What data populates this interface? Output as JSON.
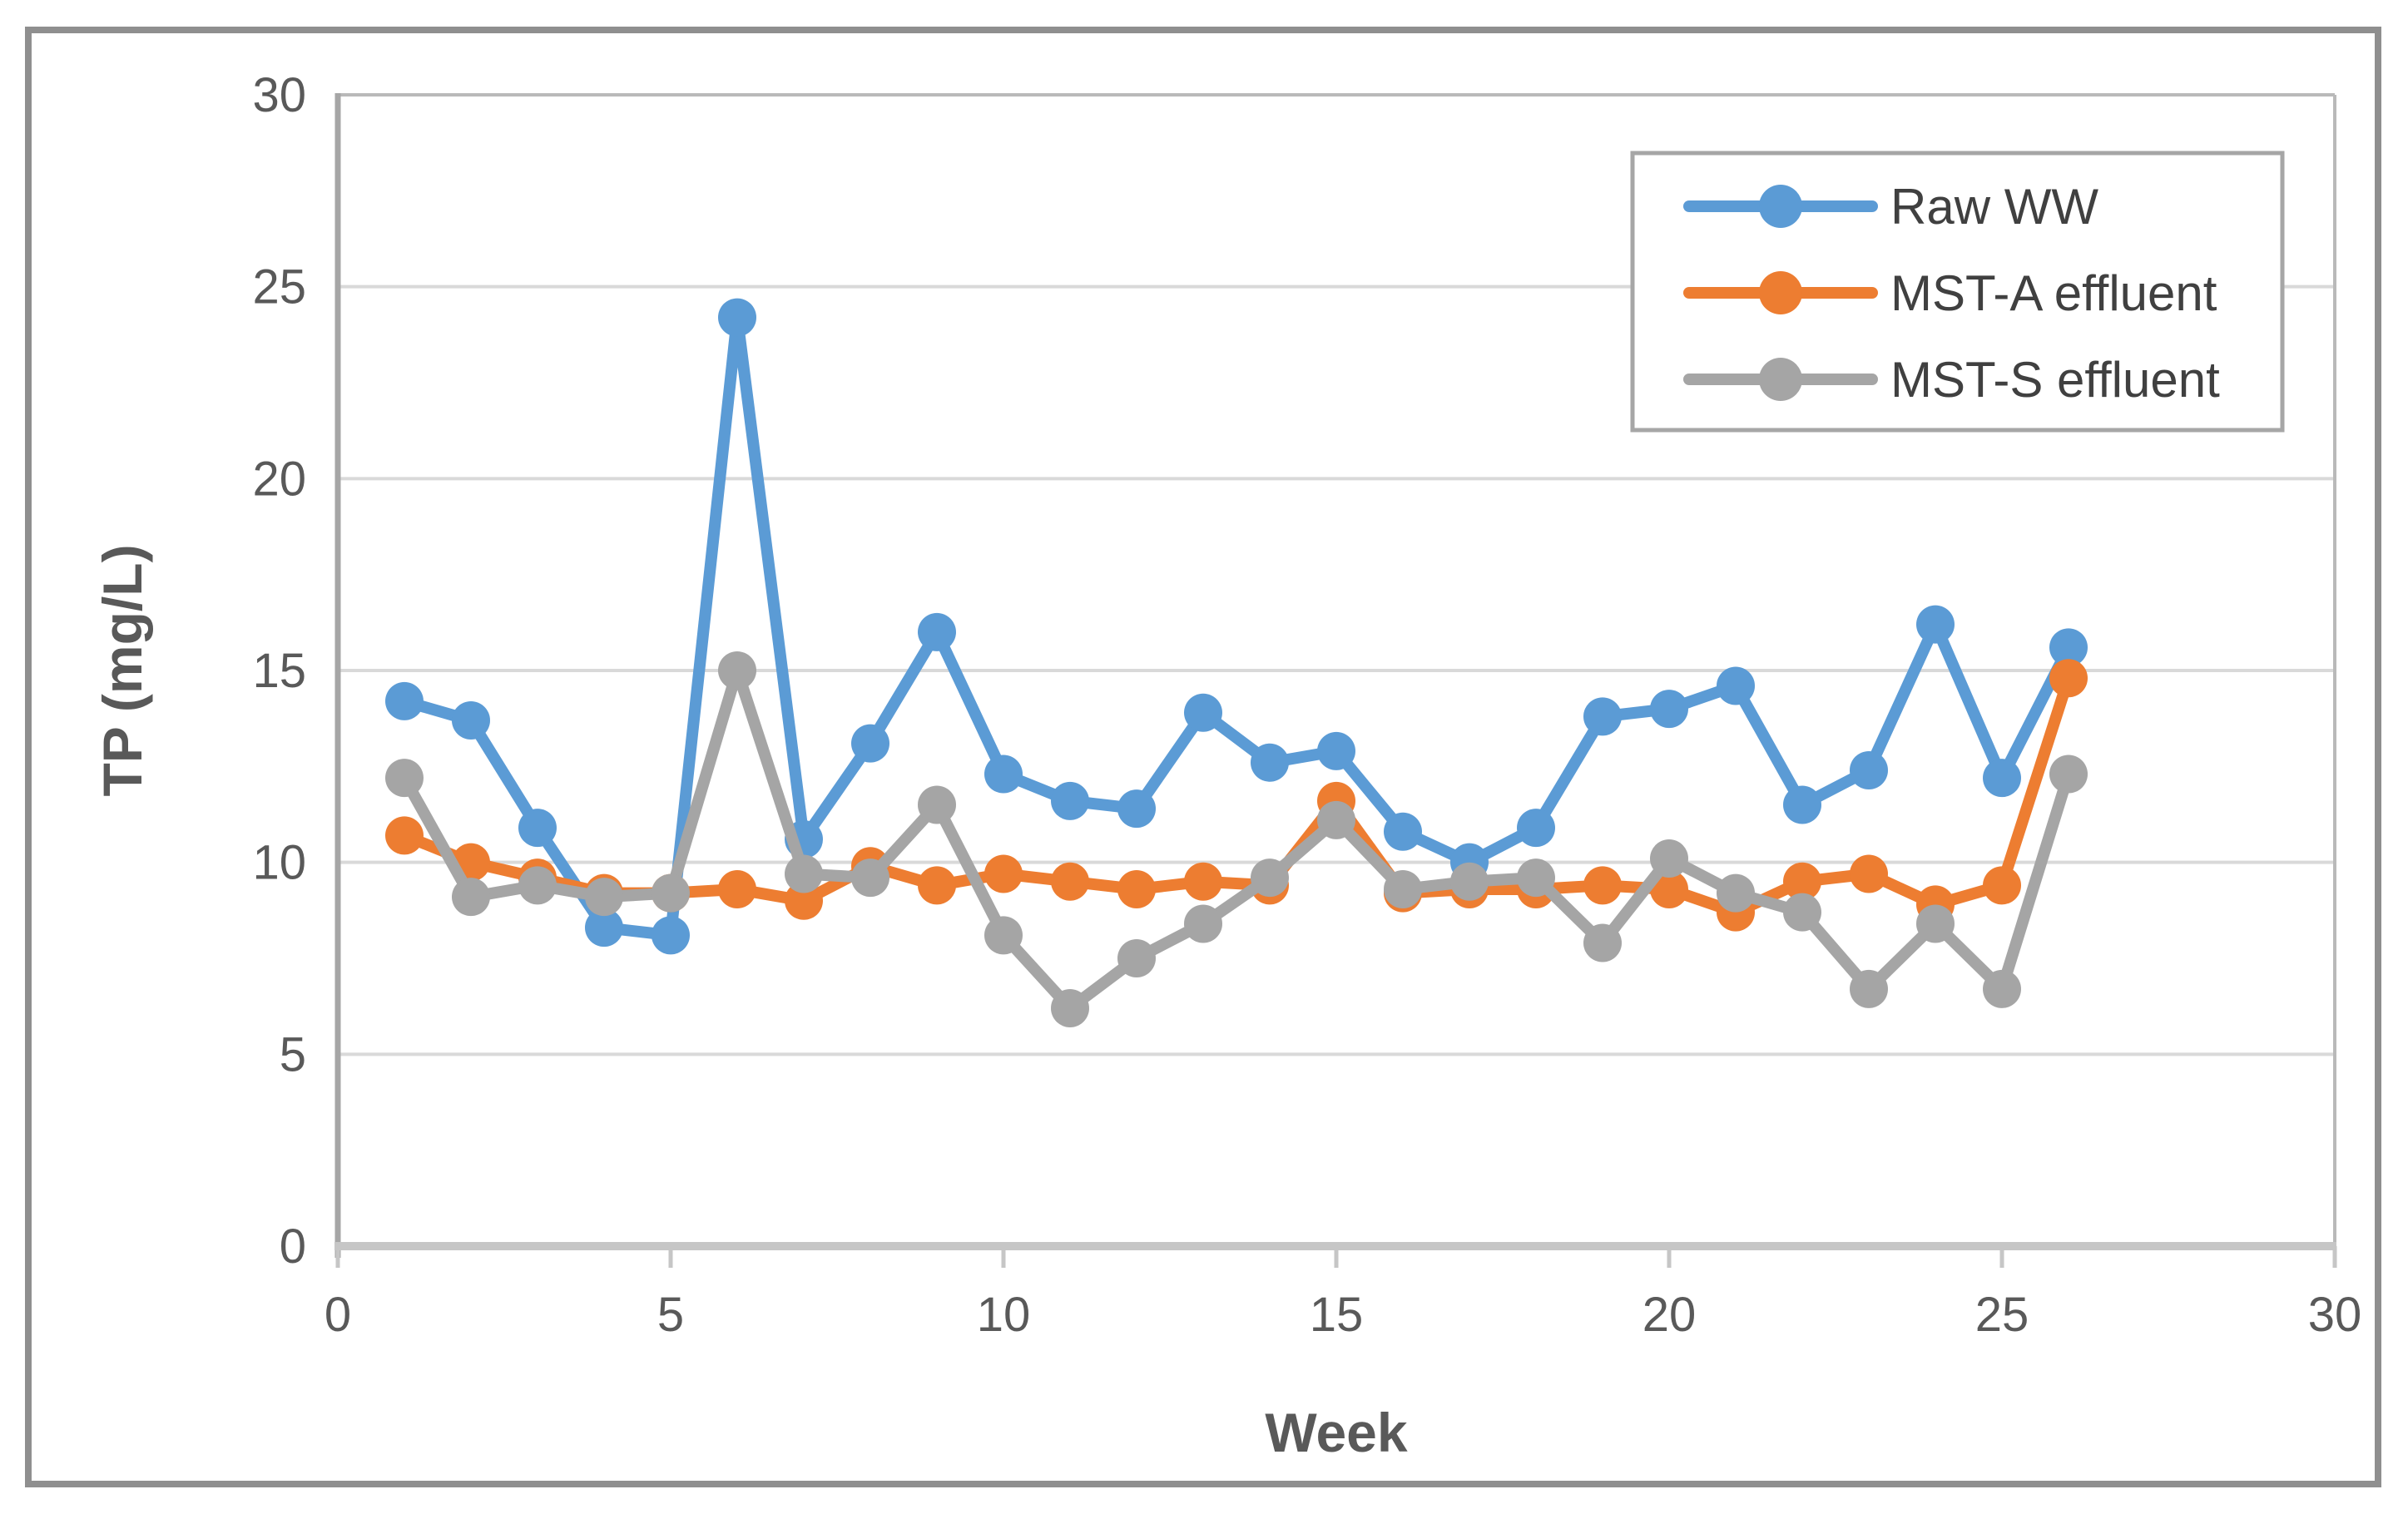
{
  "figure": {
    "border_color": "#8f8f8f",
    "background": "#ffffff"
  },
  "chart_data": {
    "type": "line",
    "title": "",
    "xlabel": "Week",
    "ylabel": "TP (mg/L)",
    "xlim": [
      0,
      30
    ],
    "ylim": [
      0,
      30
    ],
    "x_ticks": [
      0,
      5,
      10,
      15,
      20,
      25,
      30
    ],
    "y_ticks": [
      0,
      5,
      10,
      15,
      20,
      25,
      30
    ],
    "grid": true,
    "gridline_color": "#d9d9d9",
    "axis_color": "#a6a6a6",
    "bottom_axis_color": "#c6c6c6",
    "tick_label_color": "#595959",
    "legend_position": "top-right",
    "x": [
      1,
      2,
      3,
      4,
      5,
      6,
      7,
      8,
      9,
      10,
      11,
      12,
      13,
      14,
      15,
      16,
      17,
      18,
      19,
      20,
      21,
      22,
      23,
      24,
      25,
      26
    ],
    "series": [
      {
        "name": "Raw WW",
        "color": "#5B9BD5",
        "values": [
          14.2,
          13.7,
          10.9,
          8.3,
          8.1,
          24.2,
          10.6,
          13.1,
          16.0,
          12.3,
          11.6,
          11.4,
          13.9,
          12.6,
          12.9,
          10.8,
          10.0,
          10.9,
          13.8,
          14.0,
          14.6,
          11.5,
          12.4,
          16.2,
          12.2,
          15.6
        ]
      },
      {
        "name": "MST-A effluent",
        "color": "#ED7D31",
        "values": [
          10.7,
          10.0,
          9.6,
          9.2,
          9.2,
          9.3,
          9.0,
          9.9,
          9.4,
          9.7,
          9.5,
          9.3,
          9.5,
          9.4,
          11.6,
          9.2,
          9.3,
          9.3,
          9.4,
          9.3,
          8.7,
          9.5,
          9.7,
          8.9,
          9.4,
          14.8
        ]
      },
      {
        "name": "MST-S effluent",
        "color": "#A5A5A5",
        "values": [
          12.2,
          9.1,
          9.4,
          9.1,
          9.2,
          15.0,
          9.7,
          9.6,
          11.5,
          8.1,
          6.2,
          7.5,
          8.4,
          9.6,
          11.1,
          9.3,
          9.5,
          9.6,
          7.9,
          10.1,
          9.2,
          8.7,
          6.7,
          8.4,
          6.7,
          12.3
        ]
      }
    ]
  }
}
